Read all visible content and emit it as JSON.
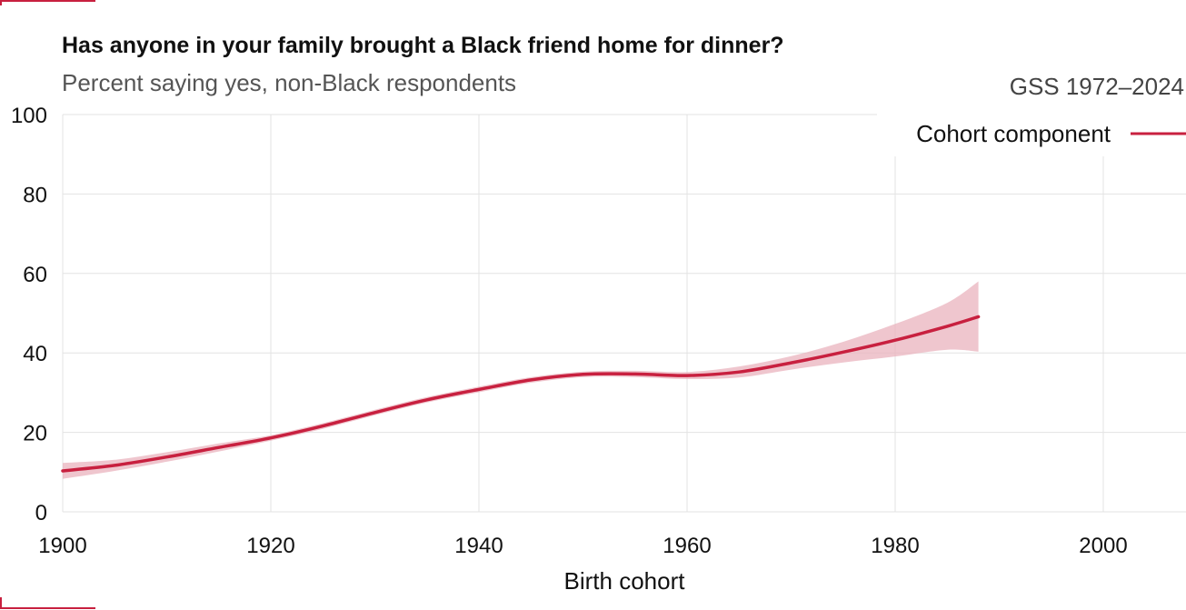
{
  "header": {
    "title": "Has anyone in your family brought a Black friend home for dinner?",
    "subtitle": "Percent saying yes, non-Black respondents",
    "source": "GSS 1972–2024"
  },
  "colors": {
    "accent": "#c8203f",
    "band": "#e9b3bd",
    "grid": "#e3e3e3",
    "corner": "#c8203f"
  },
  "chart_data": {
    "type": "line",
    "title": "Has anyone in your family brought a Black friend home for dinner?",
    "subtitle": "Percent saying yes, non-Black respondents",
    "xlabel": "Birth cohort",
    "ylabel": "",
    "xlim": [
      1900,
      2008
    ],
    "ylim": [
      0,
      100
    ],
    "x_ticks": [
      "1900",
      "1920",
      "1940",
      "1960",
      "1980",
      "2000"
    ],
    "y_ticks": [
      "0",
      "20",
      "40",
      "60",
      "80",
      "100"
    ],
    "grid": true,
    "legend": {
      "position": "top-right",
      "entries": [
        "Cohort component"
      ]
    },
    "series": [
      {
        "name": "Cohort component",
        "x": [
          1900,
          1905,
          1910,
          1915,
          1920,
          1925,
          1930,
          1935,
          1940,
          1945,
          1950,
          1955,
          1960,
          1965,
          1970,
          1975,
          1980,
          1985,
          1988
        ],
        "y": [
          10.3,
          11.7,
          13.8,
          16.2,
          18.6,
          21.6,
          25.0,
          28.2,
          30.8,
          33.2,
          34.6,
          34.7,
          34.3,
          35.2,
          37.5,
          40.2,
          43.2,
          46.7,
          49.1
        ],
        "lower": [
          8.3,
          10.3,
          12.6,
          15.2,
          17.9,
          20.9,
          24.3,
          27.5,
          30.1,
          32.5,
          33.9,
          33.9,
          33.4,
          33.8,
          35.8,
          37.6,
          39.1,
          40.8,
          40.3
        ],
        "upper": [
          12.3,
          13.1,
          15.0,
          17.2,
          19.3,
          22.3,
          25.7,
          28.9,
          31.5,
          33.9,
          35.3,
          35.5,
          35.2,
          36.6,
          39.2,
          42.8,
          47.3,
          52.6,
          58.0
        ]
      }
    ]
  }
}
